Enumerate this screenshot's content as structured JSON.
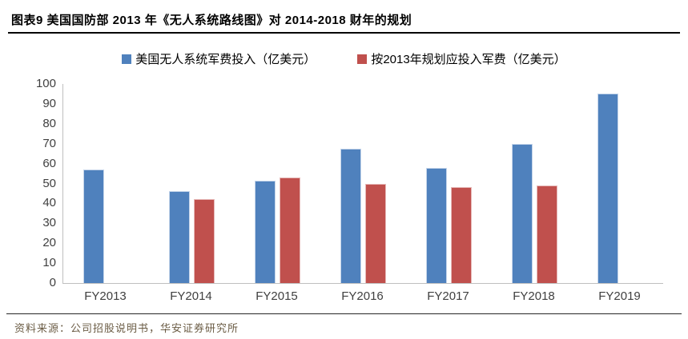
{
  "title": "图表9 美国国防部 2013 年《无人系统路线图》对 2014-2018 财年的规划",
  "source_note": "资料来源：公司招股说明书，华安证券研究所",
  "colors": {
    "series_blue": "#4F81BD",
    "series_blue_border": "#C5D5EA",
    "series_red": "#C0504D",
    "series_red_border": "#E6B9B8",
    "axis_line": "#BFBFBF",
    "title_rule": "#000000",
    "source_text": "#6B5C45"
  },
  "chart_data": {
    "type": "bar",
    "title": "图表9 美国国防部 2013 年《无人系统路线图》对 2014-2018 财年的规划",
    "categories": [
      "FY2013",
      "FY2014",
      "FY2015",
      "FY2016",
      "FY2017",
      "FY2018",
      "FY2019"
    ],
    "series": [
      {
        "name": "美国无人系统军费投入（亿美元）",
        "color": "#4F81BD",
        "border": "#C5D5EA",
        "values": [
          57,
          46,
          51.5,
          67.5,
          58,
          70,
          95
        ]
      },
      {
        "name": "按2013年规划应投入军费（亿美元）",
        "color": "#C0504D",
        "border": "#E6B9B8",
        "values": [
          null,
          42,
          53,
          50,
          48,
          49,
          null
        ]
      }
    ],
    "xlabel": "",
    "ylabel": "",
    "ylim": [
      0,
      100
    ],
    "yticks": [
      0,
      10,
      20,
      30,
      40,
      50,
      60,
      70,
      80,
      90,
      100
    ],
    "grid": false,
    "legend_position": "top"
  }
}
